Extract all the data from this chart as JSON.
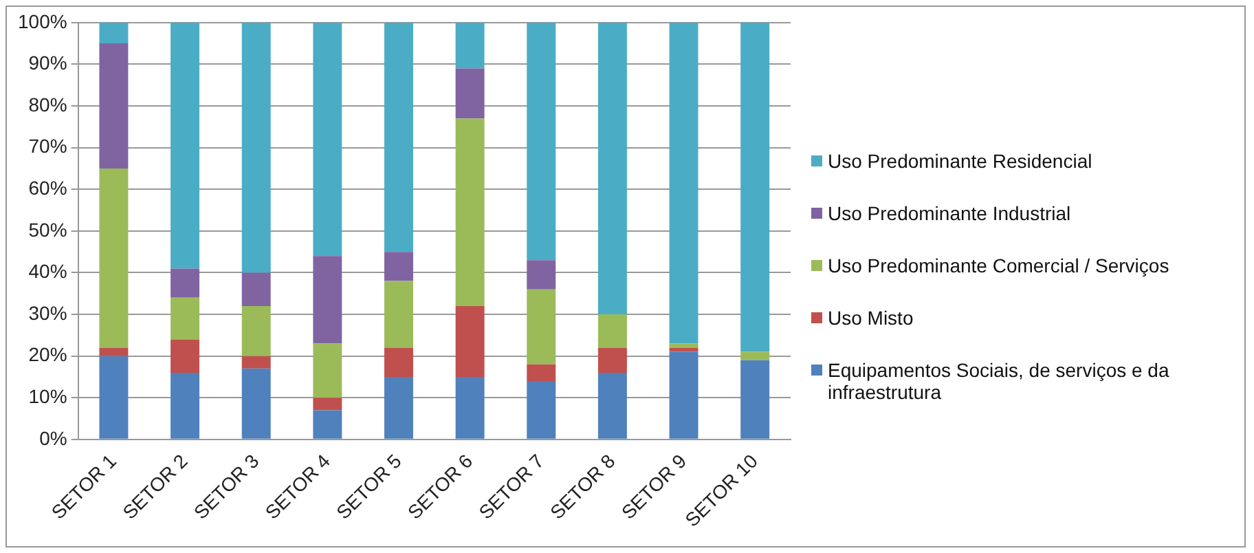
{
  "chart_data": {
    "type": "bar",
    "stacked": true,
    "categories": [
      "SETOR 1",
      "SETOR 2",
      "SETOR 3",
      "SETOR 4",
      "SETOR 5",
      "SETOR 6",
      "SETOR 7",
      "SETOR 8",
      "SETOR 9",
      "SETOR 10"
    ],
    "series": [
      {
        "name": "Equipamentos Sociais, de serviços e da infraestrutura",
        "color": "#4f81bd",
        "values": [
          20,
          16,
          17,
          7,
          15,
          15,
          14,
          16,
          21,
          19
        ]
      },
      {
        "name": "Uso Misto",
        "color": "#c0504d",
        "values": [
          2,
          8,
          3,
          3,
          7,
          17,
          4,
          6,
          1,
          0
        ]
      },
      {
        "name": "Uso Predominante Comercial / Serviços",
        "color": "#9bbb59",
        "values": [
          43,
          10,
          12,
          13,
          16,
          45,
          18,
          8,
          1,
          2
        ]
      },
      {
        "name": "Uso Predominante Industrial",
        "color": "#8064a2",
        "values": [
          30,
          7,
          8,
          21,
          7,
          12,
          7,
          0,
          0,
          0
        ]
      },
      {
        "name": "Uso Predominante Residencial",
        "color": "#4bacc6",
        "values": [
          5,
          59,
          60,
          56,
          55,
          11,
          57,
          70,
          77,
          79
        ]
      }
    ],
    "ylim": [
      0,
      100
    ],
    "yticks": [
      {
        "value": 0,
        "label": "0%"
      },
      {
        "value": 10,
        "label": "10%"
      },
      {
        "value": 20,
        "label": "20%"
      },
      {
        "value": 30,
        "label": "30%"
      },
      {
        "value": 40,
        "label": "40%"
      },
      {
        "value": 50,
        "label": "50%"
      },
      {
        "value": 60,
        "label": "60%"
      },
      {
        "value": 70,
        "label": "70%"
      },
      {
        "value": 80,
        "label": "80%"
      },
      {
        "value": 90,
        "label": "90%"
      },
      {
        "value": 100,
        "label": "100%"
      }
    ],
    "grid": "y",
    "legend": "right"
  }
}
